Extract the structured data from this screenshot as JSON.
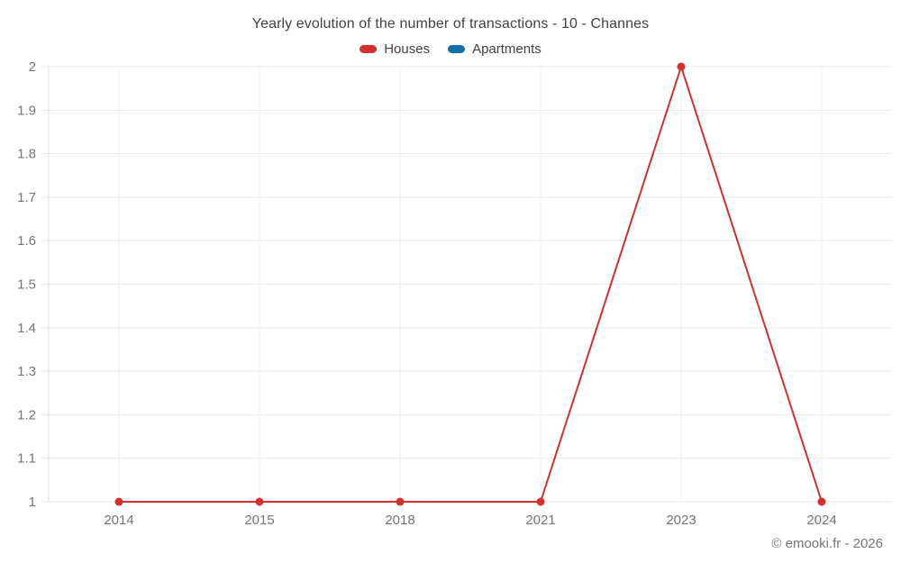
{
  "header": {
    "title": "Yearly evolution of the number of transactions - 10 - Channes"
  },
  "chart_data": {
    "type": "line",
    "title": "Yearly evolution of the number of transactions - 10 - Channes",
    "categories": [
      "2014",
      "2015",
      "2018",
      "2021",
      "2023",
      "2024"
    ],
    "series": [
      {
        "name": "Houses",
        "color": "#d32f2f",
        "values": [
          1,
          1,
          1,
          1,
          2,
          1
        ]
      },
      {
        "name": "Apartments",
        "color": "#1272a3",
        "values": []
      }
    ],
    "xlabel": "",
    "ylabel": "",
    "ylim": [
      1,
      2
    ],
    "ytick_step": 0.1,
    "ytick_labels": [
      "1",
      "1.1",
      "1.2",
      "1.3",
      "1.4",
      "1.5",
      "1.6",
      "1.7",
      "1.8",
      "1.9",
      "2"
    ],
    "grid": "on",
    "legend_position": "top",
    "colors": {
      "grid_horizontal": "#e9e9e9",
      "grid_vertical": "#f2f2f2",
      "axis_line": "#e0e0e0",
      "tick_text": "#757575",
      "title_text": "#424242"
    }
  },
  "footer": {
    "copyright": "© emooki.fr - 2026"
  }
}
